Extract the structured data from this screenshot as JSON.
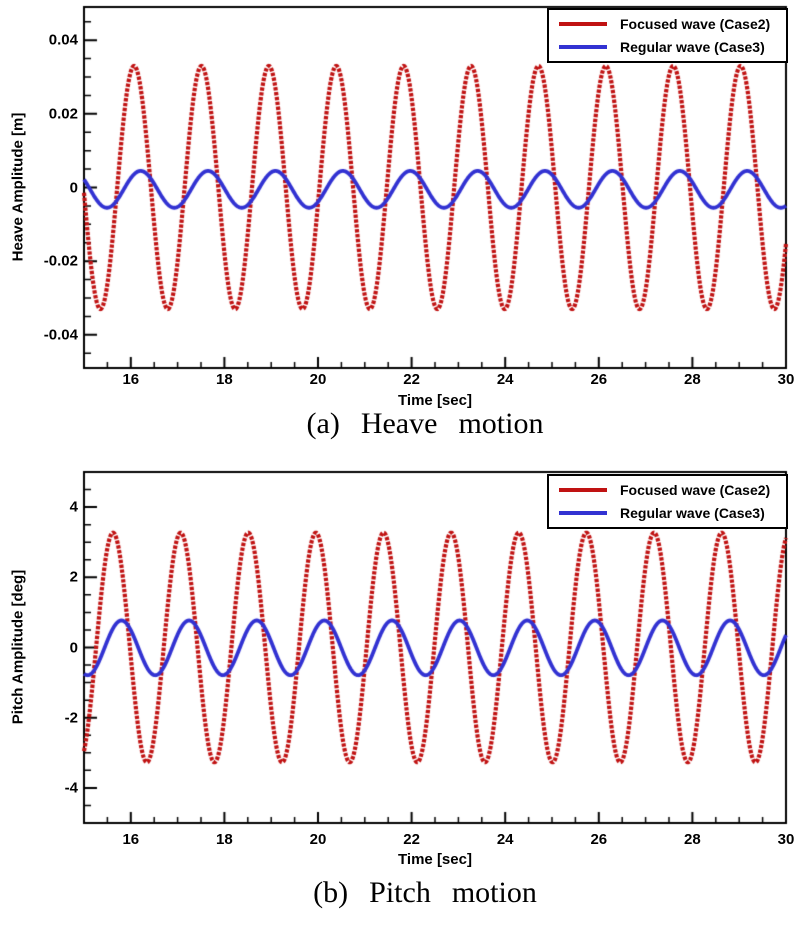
{
  "page": {
    "background": "#ffffff",
    "axis_color": "#000000"
  },
  "chart_data": [
    {
      "type": "line",
      "caption": "(a) Heave motion",
      "xlabel": "Time [sec]",
      "ylabel": "Heave Amplitude [m]",
      "xlim": [
        15,
        30
      ],
      "ylim": [
        -0.049,
        0.049
      ],
      "x_major_ticks": [
        16,
        18,
        20,
        22,
        24,
        26,
        28,
        30
      ],
      "x_tick_labels": [
        "16",
        "18",
        "20",
        "22",
        "24",
        "26",
        "28",
        "30"
      ],
      "x_minor_step": 0.5,
      "y_major_ticks": [
        0.04,
        0.02,
        0,
        -0.02,
        -0.04
      ],
      "y_tick_labels": [
        "0.04",
        "0.02",
        "0",
        "-0.02",
        "-0.04"
      ],
      "y_minor_step": 0.005,
      "grid": false,
      "legend_position": "top-right",
      "series": [
        {
          "name": "Focused wave (Case2)",
          "color": "#c01212",
          "waveform": "sinusoid",
          "amplitude": 0.033,
          "mean": 0.0,
          "period_sec": 1.44,
          "peak_time_sec": 16.07,
          "line_style": "dense-square-markers",
          "line_width": 4.2
        },
        {
          "name": "Regular wave (Case3)",
          "color": "#3232d2",
          "waveform": "sinusoid",
          "amplitude": 0.005,
          "mean": -0.0005,
          "period_sec": 1.44,
          "peak_time_sec": 16.21,
          "line_style": "solid",
          "line_width": 3.8
        }
      ]
    },
    {
      "type": "line",
      "caption": "(b) Pitch motion",
      "xlabel": "Time [sec]",
      "ylabel": "Pitch Amplitude [deg]",
      "xlim": [
        15,
        30
      ],
      "ylim": [
        -5,
        5
      ],
      "x_major_ticks": [
        16,
        18,
        20,
        22,
        24,
        26,
        28,
        30
      ],
      "x_tick_labels": [
        "16",
        "18",
        "20",
        "22",
        "24",
        "26",
        "28",
        "30"
      ],
      "x_minor_step": 0.5,
      "y_major_ticks": [
        4,
        2,
        0,
        -2,
        -4
      ],
      "y_tick_labels": [
        "4",
        "2",
        "0",
        "-2",
        "-4"
      ],
      "y_minor_step": 0.5,
      "grid": false,
      "legend_position": "top-right",
      "series": [
        {
          "name": "Focused wave (Case2)",
          "color": "#c01212",
          "waveform": "sinusoid",
          "amplitude": 3.27,
          "mean": 0.0,
          "period_sec": 1.445,
          "peak_time_sec": 15.62,
          "line_style": "dense-square-markers",
          "line_width": 4.2
        },
        {
          "name": "Regular wave (Case3)",
          "color": "#3232d2",
          "waveform": "sinusoid",
          "amplitude": 0.78,
          "mean": -0.01,
          "period_sec": 1.445,
          "peak_time_sec": 15.8,
          "line_style": "solid",
          "line_width": 3.8
        }
      ]
    }
  ]
}
